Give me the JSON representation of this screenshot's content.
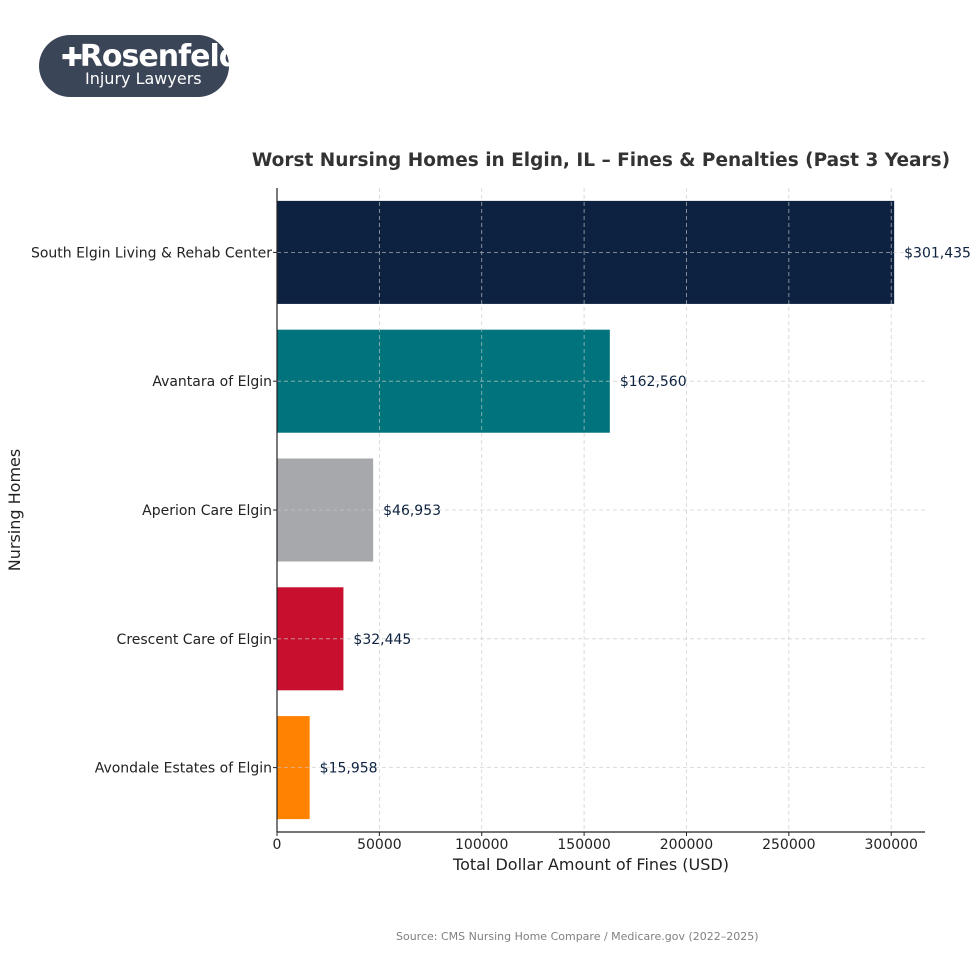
{
  "logo": {
    "brand": "Rosenfeld",
    "brand_first": "R",
    "brand_rest": "osenfeld",
    "tagline": "Injury Lawyers"
  },
  "source": "Source: CMS Nursing Home Compare / Medicare.gov (2022–2025)",
  "chart_data": {
    "type": "bar",
    "orientation": "horizontal",
    "title": "Worst Nursing Homes in Elgin, IL – Fines & Penalties (Past 3 Years)",
    "xlabel": "Total Dollar Amount of Fines (USD)",
    "ylabel": "Nursing Homes",
    "categories": [
      "South Elgin Living & Rehab Center",
      "Avantara of Elgin",
      "Aperion Care Elgin",
      "Crescent Care of Elgin",
      "Avondale Estates of Elgin"
    ],
    "values": [
      301435,
      162560,
      46953,
      32445,
      15958
    ],
    "value_labels": [
      "$301,435",
      "$162,560",
      "$46,953",
      "$32,445",
      "$15,958"
    ],
    "colors": [
      "#0d2240",
      "#00737c",
      "#a7a8ab",
      "#c8102e",
      "#ff8200"
    ],
    "xlim": [
      0,
      316500
    ],
    "xticks": [
      0,
      50000,
      100000,
      150000,
      200000,
      250000,
      300000
    ],
    "xtick_labels": [
      "0",
      "50000",
      "100000",
      "150000",
      "200000",
      "250000",
      "300000"
    ],
    "grid": true,
    "label_color": "#0d2240"
  }
}
